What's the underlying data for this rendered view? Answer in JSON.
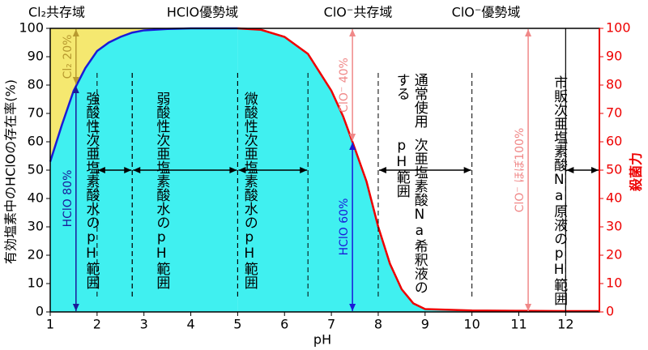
{
  "chart_data": {
    "type": "line",
    "xlabel": "pH",
    "ylabel": "有効塩素中のHClOの存在率(%)",
    "y2label": "殺菌力",
    "xlim": [
      1,
      12.72
    ],
    "xticks": [
      1,
      2,
      3,
      4,
      5,
      6,
      7,
      8,
      9,
      10,
      11,
      12
    ],
    "ylim": [
      0,
      100
    ],
    "yticks": [
      0,
      10,
      20,
      30,
      40,
      50,
      60,
      70,
      80,
      90,
      100
    ],
    "y2lim": [
      0,
      100
    ],
    "y2ticks": [
      0,
      10,
      20,
      30,
      40,
      50,
      60,
      70,
      80,
      90,
      100
    ],
    "y2color": "#ee0000",
    "fill_below": "#40f0f0",
    "fill_above": "#f5e870",
    "series": [
      {
        "color": "#1a1ad8",
        "x": [
          1,
          1.25,
          1.5,
          1.75,
          2,
          2.25,
          2.5,
          2.75,
          3,
          3.5,
          4,
          5
        ],
        "values": [
          53,
          66,
          78,
          86,
          92,
          95,
          97,
          98.5,
          99.3,
          99.8,
          100,
          100
        ]
      },
      {
        "color": "#ee0000",
        "x": [
          5,
          5.5,
          6,
          6.5,
          7,
          7.25,
          7.45,
          7.75,
          8,
          8.25,
          8.5,
          8.75,
          9,
          10,
          11,
          12,
          12.72
        ],
        "values": [
          100,
          99.5,
          97,
          91,
          78,
          69,
          60,
          46,
          30,
          17,
          8,
          3,
          1,
          0.5,
          0.4,
          0.3,
          0.3
        ]
      }
    ],
    "regions": [
      "Cl₂共存域",
      "HClO優勢域",
      "ClO⁻共存域",
      "ClO⁻優勢域"
    ],
    "annotations": [
      {
        "x": 1.55,
        "from": 80,
        "to": 100,
        "label": "Cl₂ 20%",
        "color": "#b89a30"
      },
      {
        "x": 1.55,
        "from": 0,
        "to": 80,
        "label": "HClO 80%",
        "color": "#1a1a9a"
      },
      {
        "x": 7.45,
        "from": 0,
        "to": 60,
        "label": "HClO 60%",
        "color": "#1a1ad8"
      },
      {
        "x": 7.45,
        "from": 60,
        "to": 100,
        "label": "ClO⁻ 40%",
        "color": "#f08888"
      },
      {
        "x": 11.2,
        "from": 0,
        "to": 100,
        "label": "ClO⁻ ほぼ100%",
        "color": "#f08888"
      }
    ],
    "ranges": [
      {
        "from": 2,
        "to": 2.75,
        "label": [
          "強酸性次亜塩素酸水のpH範囲"
        ]
      },
      {
        "from": 2.75,
        "to": 5,
        "label": [
          "弱酸性次亜塩素酸水のpH範囲"
        ]
      },
      {
        "from": 5,
        "to": 6.5,
        "label": [
          "微酸性次亜塩素酸水のpH範囲"
        ]
      },
      {
        "from": 8,
        "to": 10,
        "label": [
          "通常使用する",
          "次亜塩素酸Na希釈液のpH範囲"
        ]
      },
      {
        "from": 12,
        "to": 12.72,
        "label": [
          "市販次亜塩素酸Na原液のpH範囲"
        ]
      }
    ]
  }
}
